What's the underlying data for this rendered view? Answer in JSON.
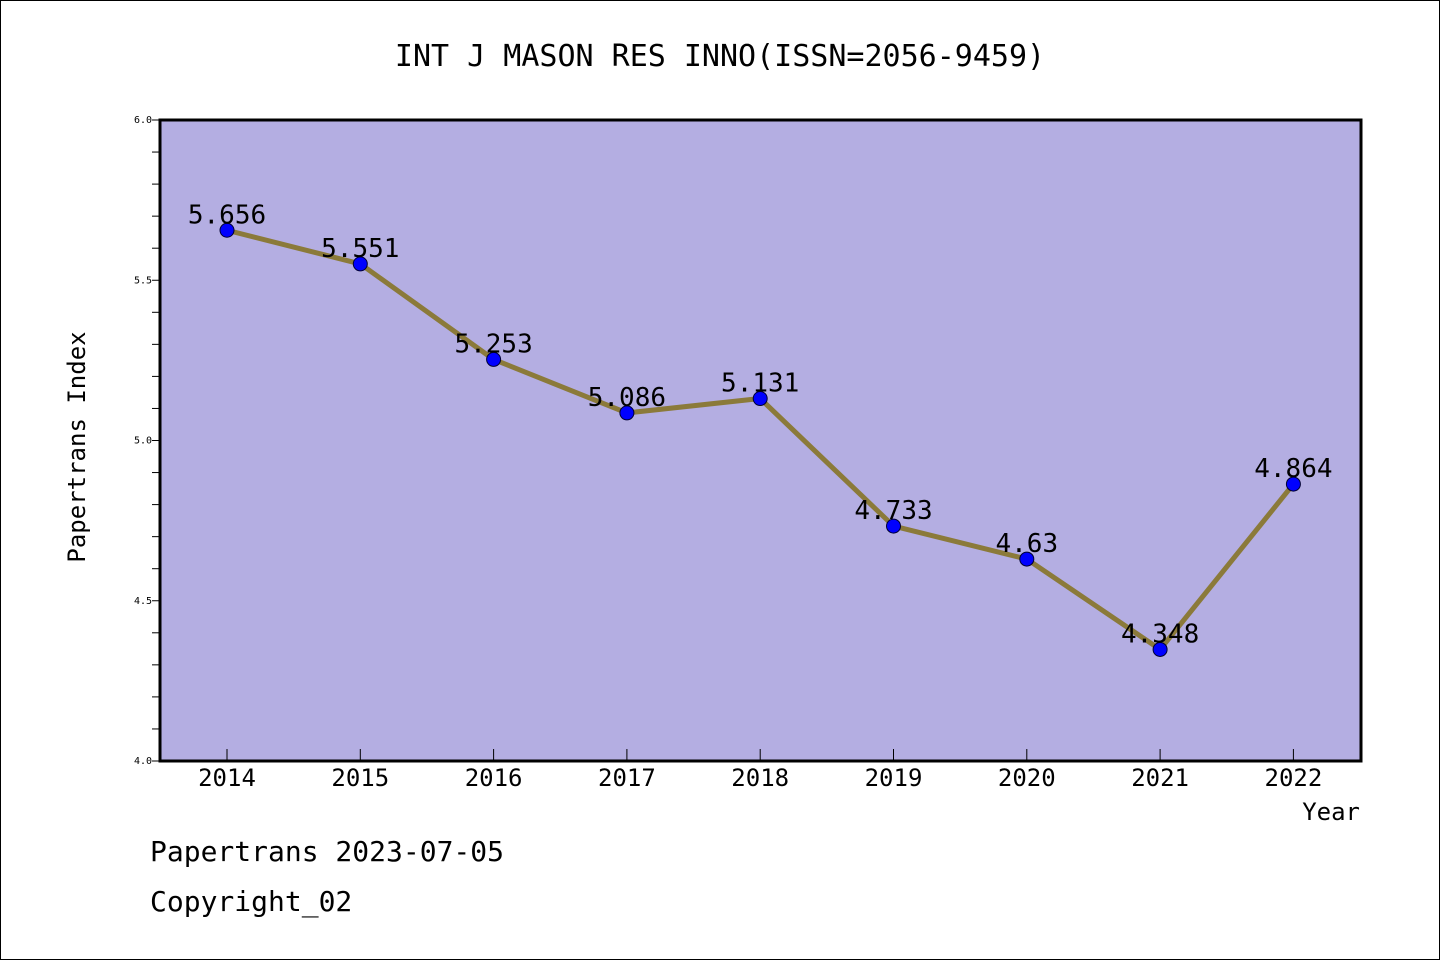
{
  "chart_data": {
    "type": "line",
    "title": "INT J MASON RES INNO(ISSN=2056-9459)",
    "xlabel": "Year",
    "ylabel": "Papertrans Index",
    "categories": [
      "2014",
      "2015",
      "2016",
      "2017",
      "2018",
      "2019",
      "2020",
      "2021",
      "2022"
    ],
    "values": [
      5.656,
      5.551,
      5.253,
      5.086,
      5.131,
      4.733,
      4.63,
      4.348,
      4.864
    ],
    "data_labels": [
      "5.656",
      "5.551",
      "5.253",
      "5.086",
      "5.131",
      "4.733",
      "4.63",
      "4.348",
      "4.864"
    ],
    "ylim": [
      4.0,
      6.0
    ],
    "yticks": [
      "4.0",
      "4.5",
      "5.0",
      "5.5",
      "6.0"
    ],
    "grid": false,
    "legend": "none",
    "colors": {
      "plot_background": "#b4aee2",
      "line": "#8b7a3a",
      "marker": "#0000ff",
      "axes": "#000000"
    }
  },
  "footer": {
    "line1": "Papertrans 2023-07-05",
    "line2": "Copyright_02"
  }
}
